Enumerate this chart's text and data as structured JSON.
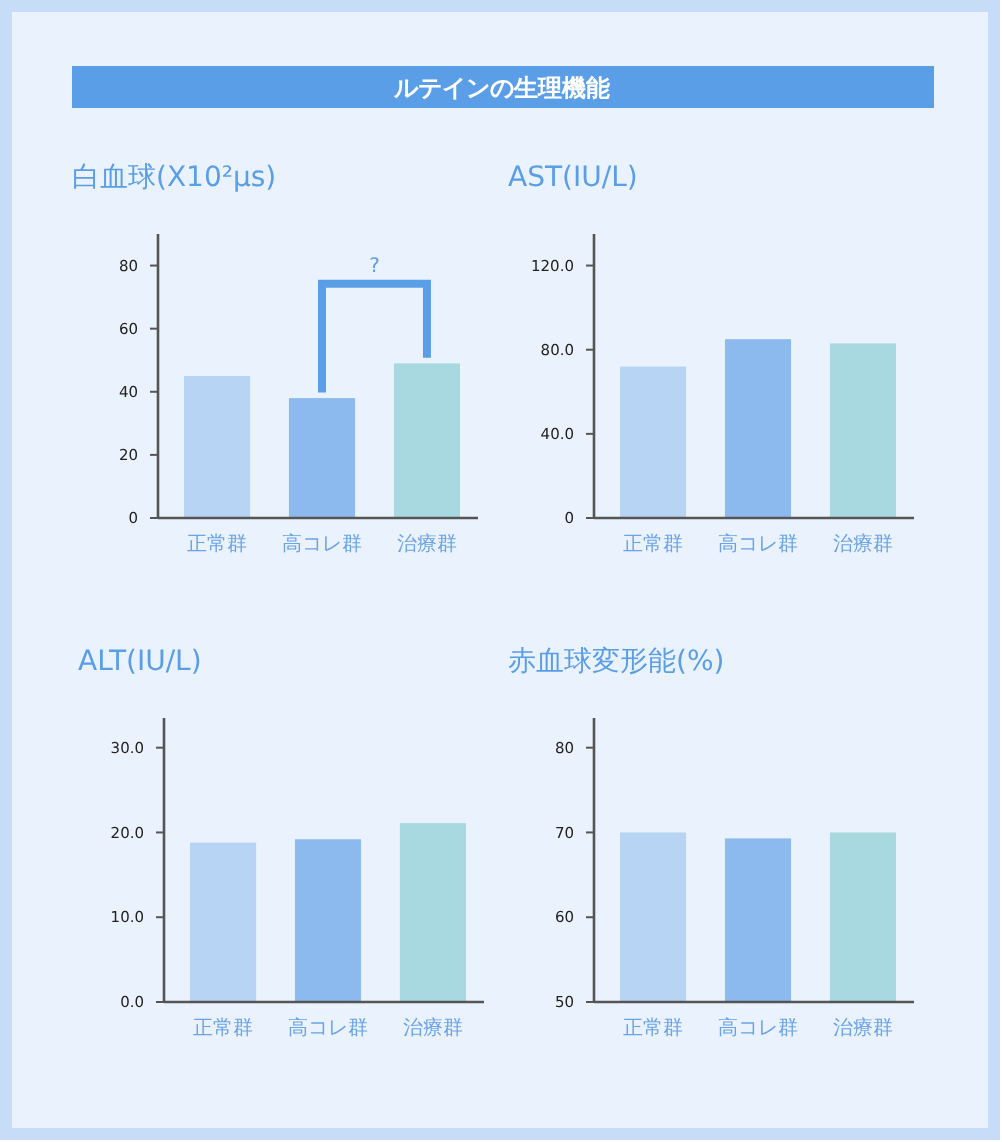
{
  "chart_data": [
    {
      "type": "other",
      "title": "ルテインの生理機能"
    },
    {
      "type": "bar",
      "title": "白血球(X10²μs)",
      "categories": [
        "正常群",
        "高コレ群",
        "治療群"
      ],
      "values": [
        45,
        38,
        49
      ],
      "colors": [
        "#b8d4f4",
        "#8dbaee",
        "#a8d8e0"
      ],
      "ylim": [
        0,
        90
      ],
      "yticks": [
        0,
        20,
        40,
        60,
        80
      ],
      "annotations": [
        "?"
      ]
    },
    {
      "type": "bar",
      "title": "AST(IU/L)",
      "categories": [
        "正常群",
        "高コレ群",
        "治療群"
      ],
      "values": [
        72,
        85,
        83
      ],
      "colors": [
        "#b8d4f4",
        "#8dbaee",
        "#a8d8e0"
      ],
      "ylim": [
        0,
        135
      ],
      "yticks": [
        0,
        {
          "value": 40,
          "label": "40.0"
        },
        {
          "value": 80,
          "label": "80.0"
        },
        {
          "value": 120,
          "label": "120.0"
        }
      ]
    },
    {
      "type": "bar",
      "title": "ALT(IU/L)",
      "categories": [
        "正常群",
        "高コレ群",
        "治療群"
      ],
      "values": [
        18.8,
        19.2,
        21.1
      ],
      "colors": [
        "#b8d4f4",
        "#8dbaee",
        "#a8d8e0"
      ],
      "ylim": [
        0,
        33.5
      ],
      "yticks": [
        {
          "value": 0,
          "label": "0.0"
        },
        {
          "value": 10,
          "label": "10.0"
        },
        {
          "value": 20,
          "label": "20.0"
        },
        {
          "value": 30,
          "label": "30.0"
        }
      ]
    },
    {
      "type": "bar",
      "title": "赤血球変形能(%)",
      "categories": [
        "正常群",
        "高コレ群",
        "治療群"
      ],
      "values": [
        70,
        69.3,
        70
      ],
      "colors": [
        "#b8d4f4",
        "#8dbaee",
        "#a8d8e0"
      ],
      "ylim": [
        50,
        83.5
      ],
      "yticks": [
        50,
        60,
        70,
        80
      ]
    }
  ]
}
